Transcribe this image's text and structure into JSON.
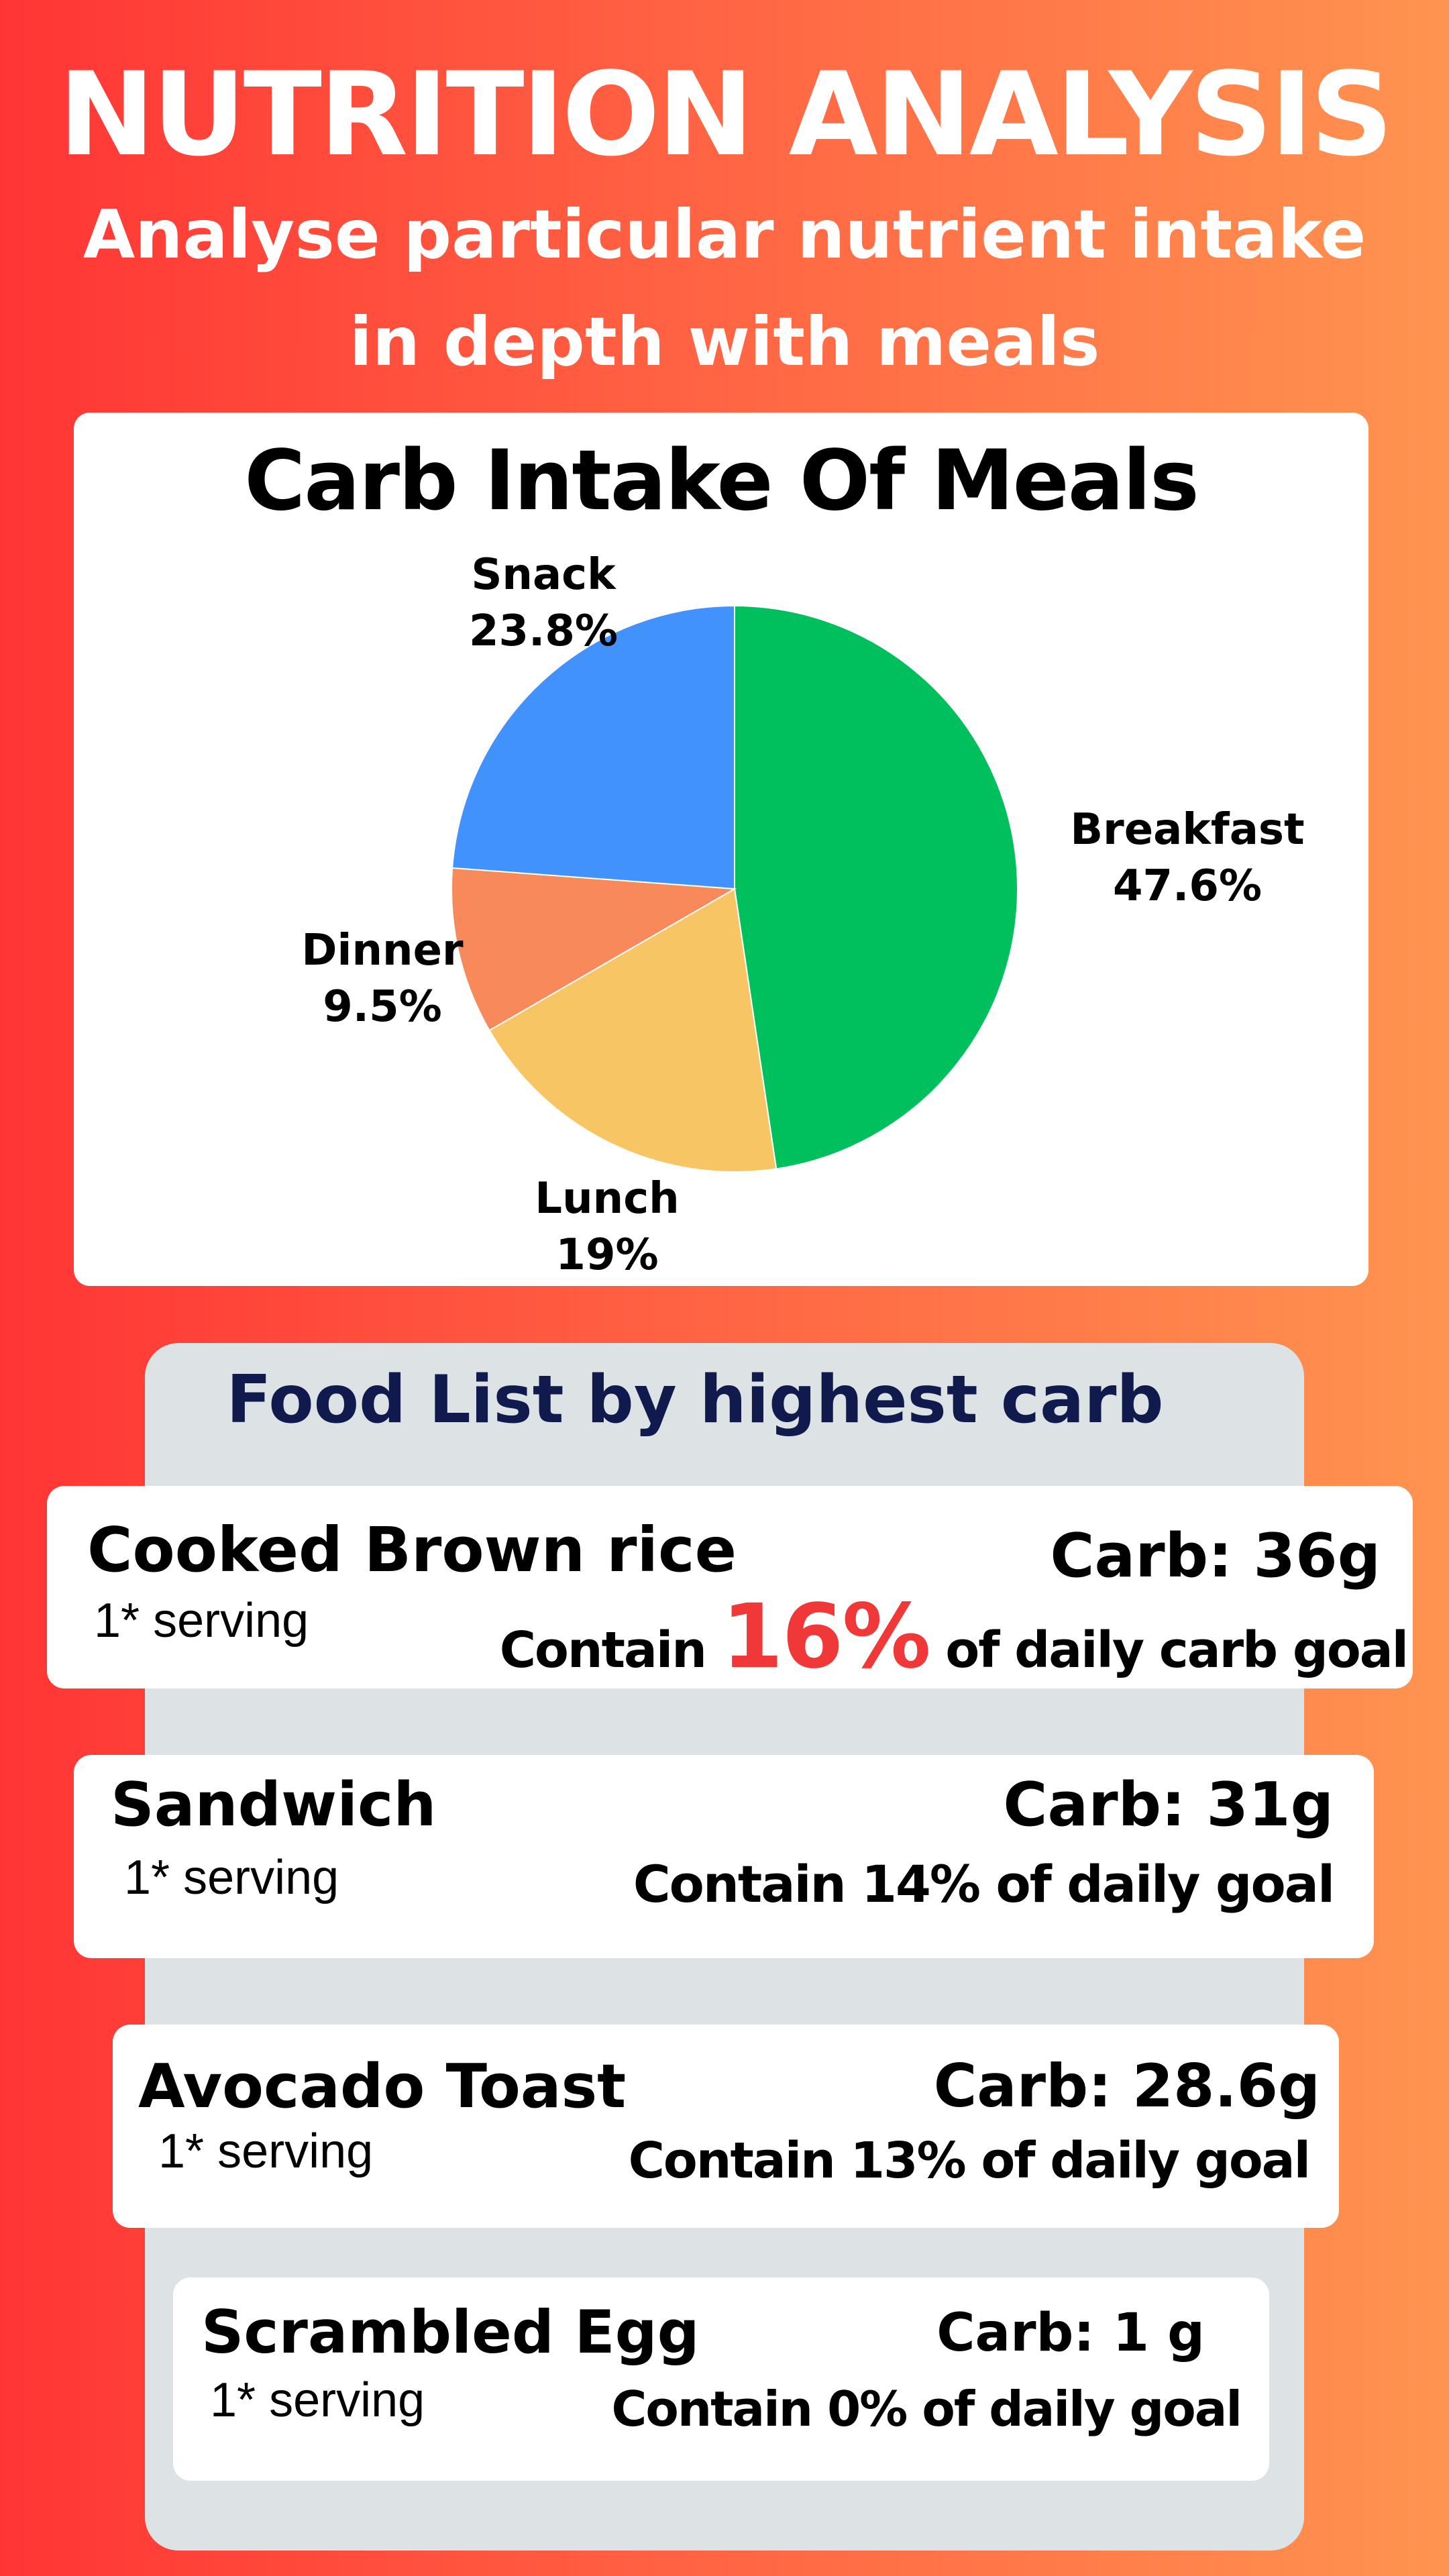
{
  "header": {
    "title": "NUTRITION ANALYSIS",
    "subtitle": "Analyse particular nutrient intake in depth with meals"
  },
  "chart_data": {
    "type": "pie",
    "title": "Carb Intake Of Meals",
    "slices": [
      {
        "label": "Breakfast",
        "value": 47.6,
        "value_label": "47.6%",
        "color": "#00c05e"
      },
      {
        "label": "Lunch",
        "value": 19,
        "value_label": "19%",
        "color": "#f7c563"
      },
      {
        "label": "Dinner",
        "value": 9.5,
        "value_label": "9.5%",
        "color": "#f8895a"
      },
      {
        "label": "Snack",
        "value": 23.8,
        "value_label": "23.8%",
        "color": "#4192fc"
      }
    ],
    "start_angle": "12 o'clock",
    "direction": "clockwise"
  },
  "food_list": {
    "title": "Food List by highest carb",
    "items": [
      {
        "name": "Cooked Brown rice",
        "serving": "1* serving",
        "carb": "Carb: 36g",
        "contain_prefix": "Contain",
        "contain_pct": "16%",
        "contain_suffix": "of daily carb goal"
      },
      {
        "name": "Sandwich",
        "serving": "1* serving",
        "carb": "Carb: 31g",
        "contain": "Contain 14% of daily goal"
      },
      {
        "name": "Avocado Toast",
        "serving": "1* serving",
        "carb": "Carb: 28.6g",
        "contain": "Contain 13% of daily goal"
      },
      {
        "name": "Scrambled Egg",
        "serving": "1* serving",
        "carb": "Carb: 1 g",
        "contain": "Contain 0% of daily goal"
      }
    ]
  },
  "colors": {
    "background_left": "#ff3535",
    "background_right": "#ff9450",
    "panel": "#dde2e4",
    "food_title": "#101a4d",
    "highlight": "#f13838"
  }
}
